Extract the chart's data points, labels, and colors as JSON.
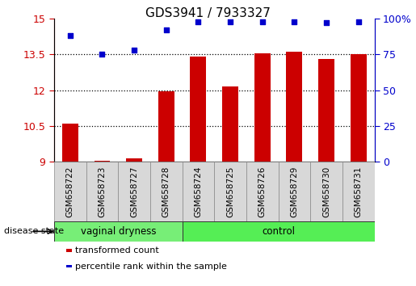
{
  "title": "GDS3941 / 7933327",
  "samples": [
    "GSM658722",
    "GSM658723",
    "GSM658727",
    "GSM658728",
    "GSM658724",
    "GSM658725",
    "GSM658726",
    "GSM658729",
    "GSM658730",
    "GSM658731"
  ],
  "transformed_count": [
    10.6,
    9.05,
    9.15,
    11.95,
    13.4,
    12.15,
    13.55,
    13.6,
    13.3,
    13.5
  ],
  "percentile_rank": [
    88,
    75,
    78,
    92,
    98,
    98,
    98,
    98,
    97,
    98
  ],
  "bar_color": "#cc0000",
  "dot_color": "#0000cc",
  "left_ylim": [
    9,
    15
  ],
  "left_yticks": [
    9,
    10.5,
    12,
    13.5,
    15
  ],
  "left_ytick_labels": [
    "9",
    "10.5",
    "12",
    "13.5",
    "15"
  ],
  "right_ylim": [
    0,
    100
  ],
  "right_yticks": [
    0,
    25,
    50,
    75,
    100
  ],
  "right_ytick_labels": [
    "0",
    "25",
    "50",
    "75",
    "100%"
  ],
  "hgrid_values": [
    10.5,
    12,
    13.5
  ],
  "group_labels": [
    "vaginal dryness",
    "control"
  ],
  "group_colors": [
    "#77ee77",
    "#55ee55"
  ],
  "disease_state_label": "disease state",
  "legend_red_label": "transformed count",
  "legend_blue_label": "percentile rank within the sample",
  "bar_width": 0.5,
  "bar_bottom": 9.0,
  "n_vd": 4,
  "n_ctrl": 6,
  "tick_label_color": "#d8d8d8",
  "tick_label_fontsize": 7.5
}
